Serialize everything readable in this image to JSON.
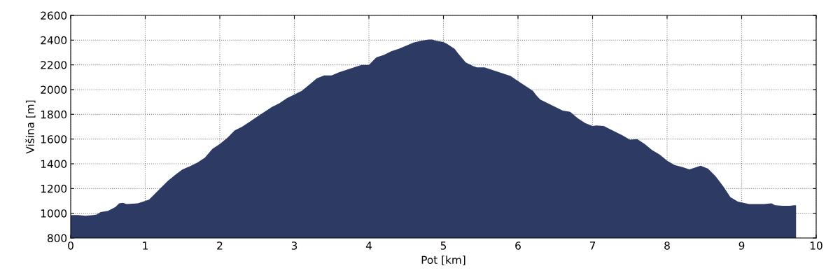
{
  "chart_data": {
    "type": "area",
    "xlabel": "Pot [km]",
    "ylabel": "Višina [m]",
    "xlim": [
      0,
      10
    ],
    "xticks": [
      0,
      1,
      2,
      3,
      4,
      5,
      6,
      7,
      8,
      9,
      10
    ],
    "ylim": [
      800,
      2600
    ],
    "yticks": [
      800,
      1000,
      1200,
      1400,
      1600,
      1800,
      2000,
      2200,
      2400,
      2600
    ],
    "grid": true,
    "series": [
      {
        "color": "#2c3a64",
        "x": [
          0,
          0.1,
          0.2,
          0.3,
          0.35,
          0.4,
          0.5,
          0.6,
          0.65,
          0.7,
          0.75,
          0.9,
          1.0,
          1.05,
          1.1,
          1.2,
          1.3,
          1.4,
          1.5,
          1.6,
          1.7,
          1.8,
          1.9,
          2.0,
          2.1,
          2.2,
          2.3,
          2.4,
          2.5,
          2.6,
          2.7,
          2.8,
          2.9,
          3.0,
          3.1,
          3.2,
          3.3,
          3.4,
          3.5,
          3.6,
          3.7,
          3.8,
          3.9,
          4.0,
          4.05,
          4.1,
          4.2,
          4.3,
          4.4,
          4.5,
          4.6,
          4.7,
          4.8,
          4.85,
          4.9,
          5.0,
          5.05,
          5.15,
          5.2,
          5.3,
          5.4,
          5.45,
          5.55,
          5.7,
          5.8,
          5.9,
          6.0,
          6.1,
          6.2,
          6.25,
          6.3,
          6.4,
          6.5,
          6.6,
          6.7,
          6.8,
          6.9,
          7.0,
          7.05,
          7.15,
          7.3,
          7.4,
          7.5,
          7.6,
          7.7,
          7.8,
          7.9,
          8.0,
          8.1,
          8.2,
          8.3,
          8.35,
          8.45,
          8.55,
          8.65,
          8.75,
          8.85,
          8.95,
          9.1,
          9.3,
          9.4,
          9.45,
          9.55,
          9.65,
          9.7,
          9.73
        ],
        "values": [
          985,
          985,
          980,
          985,
          990,
          1010,
          1020,
          1050,
          1080,
          1085,
          1075,
          1080,
          1100,
          1110,
          1140,
          1200,
          1260,
          1310,
          1355,
          1380,
          1410,
          1450,
          1520,
          1560,
          1610,
          1670,
          1700,
          1740,
          1780,
          1820,
          1860,
          1890,
          1930,
          1960,
          1990,
          2040,
          2090,
          2115,
          2115,
          2140,
          2160,
          2180,
          2200,
          2200,
          2230,
          2260,
          2280,
          2310,
          2330,
          2355,
          2380,
          2395,
          2405,
          2405,
          2395,
          2385,
          2370,
          2330,
          2290,
          2220,
          2190,
          2180,
          2180,
          2150,
          2130,
          2110,
          2070,
          2030,
          1990,
          1950,
          1920,
          1890,
          1860,
          1830,
          1820,
          1770,
          1730,
          1705,
          1710,
          1705,
          1660,
          1630,
          1595,
          1600,
          1560,
          1510,
          1475,
          1425,
          1390,
          1375,
          1355,
          1365,
          1385,
          1360,
          1300,
          1220,
          1130,
          1095,
          1075,
          1075,
          1080,
          1065,
          1060,
          1060,
          1065,
          1065
        ]
      }
    ]
  }
}
